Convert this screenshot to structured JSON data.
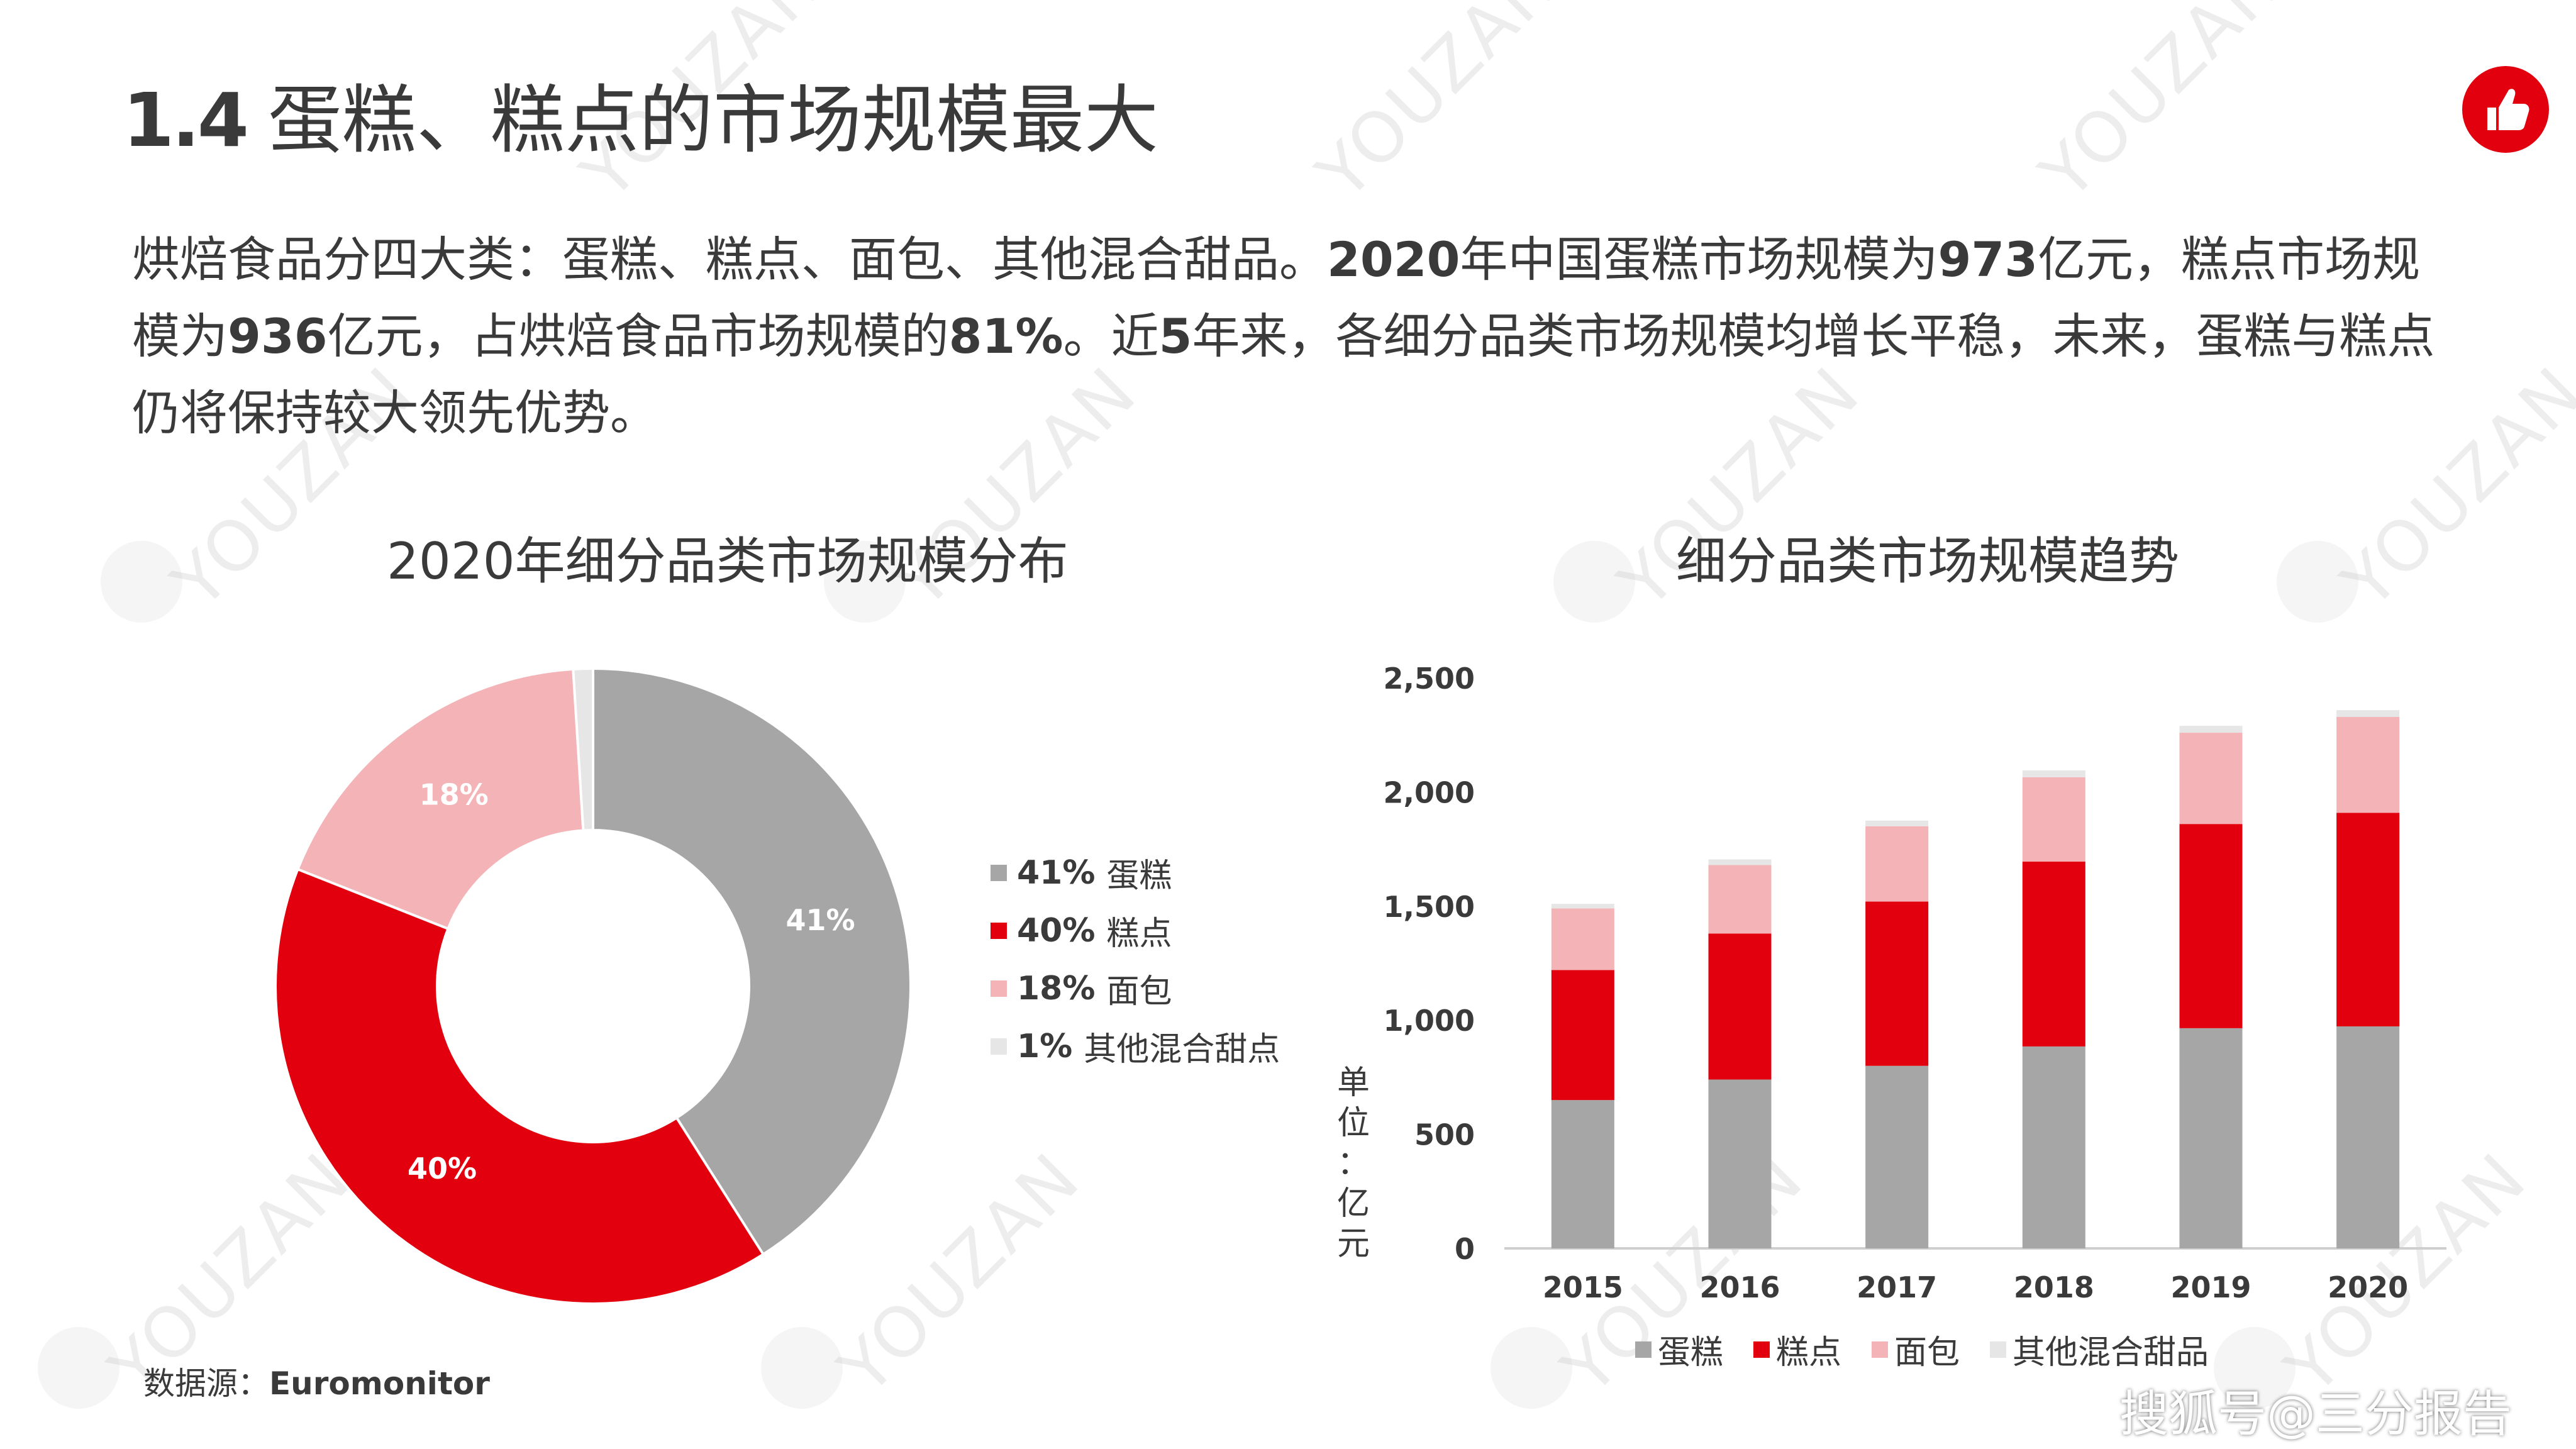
{
  "header": {
    "number": "1.4",
    "title": "蛋糕、糕点的市场规模最大",
    "logo": "thumbs-up-icon",
    "accent": "#e2000f"
  },
  "intro": {
    "line1_a": "烘焙食品分四大类：蛋糕、糕点、面包、其他混合甜品。",
    "line1_b": "2020",
    "line1_c": "年中国蛋糕市场规模为",
    "line1_d": "973",
    "line1_e": "亿元，糕点市场规",
    "line2_a": "模为",
    "line2_b": "936",
    "line2_c": "亿元，占烘焙食品市场规模的",
    "line2_d": "81%",
    "line2_e": "。近",
    "line2_f": "5",
    "line2_g": "年来，各细分品类市场规模均增长平稳，未来，蛋糕与糕点",
    "line3": "仍将保持较大领先优势。"
  },
  "watermark": "YOUZAN",
  "source": {
    "label": "数据源：",
    "value": "Euromonitor"
  },
  "brand": "搜狐号@三分报告",
  "chart_data": [
    {
      "type": "pie",
      "title": "2020年细分品类市场规模分布",
      "donut": true,
      "categories": [
        "蛋糕",
        "糕点",
        "面包",
        "其他混合甜点"
      ],
      "values": [
        41,
        40,
        18,
        1
      ],
      "data_labels": [
        "41%",
        "40%",
        "18%",
        ""
      ],
      "legend": [
        "41% 蛋糕",
        "40% 糕点",
        "18% 面包",
        "1% 其他混合甜点"
      ],
      "legend_pct": [
        "41%",
        "40%",
        "18%",
        "1%"
      ],
      "legend_names": [
        "蛋糕",
        "糕点",
        "面包",
        "其他混合甜点"
      ],
      "colors": [
        "#a6a6a6",
        "#e2000f",
        "#f4b3b6",
        "#e6e6e6"
      ],
      "legend_position": "right"
    },
    {
      "type": "bar",
      "stacked": true,
      "title": "细分品类市场规模趋势",
      "categories": [
        "2015",
        "2016",
        "2017",
        "2018",
        "2019",
        "2020"
      ],
      "series": [
        {
          "name": "蛋糕",
          "values": [
            650,
            740,
            800,
            885,
            965,
            973
          ],
          "color": "#a6a6a6"
        },
        {
          "name": "糕点",
          "values": [
            570,
            640,
            720,
            810,
            895,
            936
          ],
          "color": "#e2000f"
        },
        {
          "name": "面包",
          "values": [
            270,
            300,
            330,
            370,
            400,
            420
          ],
          "color": "#f4b3b6"
        },
        {
          "name": "其他混合甜品",
          "values": [
            20,
            25,
            25,
            30,
            30,
            30
          ],
          "color": "#e6e6e6"
        }
      ],
      "ylabel": "单位：亿元",
      "ylabel_chars": "单\n位\n：\n亿\n元",
      "ylim": [
        0,
        2500
      ],
      "yticks": [
        0,
        500,
        1000,
        1500,
        2000,
        2500
      ],
      "ytick_labels": [
        "0",
        "500",
        "1,000",
        "1,500",
        "2,000",
        "2,500"
      ],
      "grid": false,
      "legend_position": "bottom"
    }
  ]
}
